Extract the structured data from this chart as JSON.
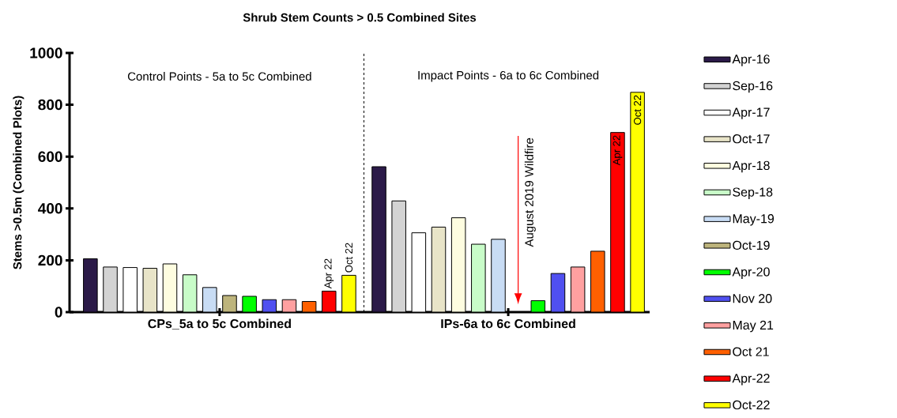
{
  "chart_data": {
    "type": "bar",
    "title": "Shrub Stem Counts > 0.5 Combined Sites",
    "ylabel": "Stems >0.5m (Combined Plots)",
    "categories": [
      "CPs_5a to 5c Combined",
      "IPs-6a to 6c Combined"
    ],
    "series": [
      {
        "name": "Apr-16",
        "color": "#2b1a48",
        "values": [
          206,
          561
        ]
      },
      {
        "name": "Sep-16",
        "color": "#d3d3d3",
        "values": [
          174,
          429
        ]
      },
      {
        "name": "Apr-17",
        "color": "#ffffff",
        "values": [
          172,
          306
        ]
      },
      {
        "name": "Oct-17",
        "color": "#e8e4c8",
        "values": [
          169,
          328
        ]
      },
      {
        "name": "Apr-18",
        "color": "#fefde0",
        "values": [
          186,
          364
        ]
      },
      {
        "name": "Sep-18",
        "color": "#c8fcc8",
        "values": [
          144,
          262
        ]
      },
      {
        "name": "May-19",
        "color": "#c8dcf4",
        "values": [
          95,
          281
        ]
      },
      {
        "name": "Oct-19",
        "color": "#bdb47c",
        "values": [
          64,
          null
        ]
      },
      {
        "name": "Apr-20",
        "color": "#00ff00",
        "values": [
          61,
          44
        ]
      },
      {
        "name": "Nov 20",
        "color": "#5050f0",
        "values": [
          48,
          149
        ]
      },
      {
        "name": "May 21",
        "color": "#ffa0a0",
        "values": [
          48,
          174
        ]
      },
      {
        "name": "Oct 21",
        "color": "#ff6000",
        "values": [
          41,
          235
        ]
      },
      {
        "name": "Apr-22",
        "color": "#ff0000",
        "values": [
          81,
          693
        ],
        "value_labels": [
          "Apr 22",
          "Apr 22"
        ]
      },
      {
        "name": "Oct-22",
        "color": "#ffff00",
        "values": [
          142,
          848
        ],
        "value_labels": [
          "Oct 22",
          "Oct 22"
        ]
      }
    ],
    "ylim": [
      0,
      1000
    ],
    "yticks": [
      0,
      200,
      400,
      600,
      800,
      1000
    ],
    "annotations": [
      "Control Points - 5a to 5c Combined",
      "Impact Points - 6a to 6c Combined",
      "August 2019 Wildfire"
    ],
    "grid": false,
    "legend": "right"
  }
}
